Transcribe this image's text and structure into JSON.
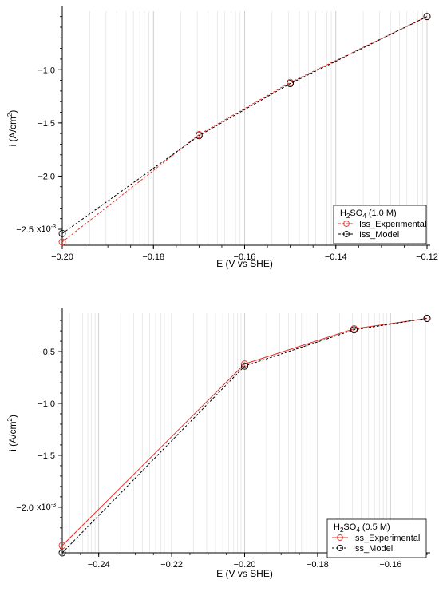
{
  "chart_data": [
    {
      "type": "line",
      "xlabel_main": "E (V vs SHE)",
      "ylabel_main": "i (A/cm",
      "ylabel_sup": "2",
      "ylabel_close": ")",
      "x_ticks": [
        -0.2,
        -0.18,
        -0.16,
        -0.14,
        -0.12
      ],
      "x_tick_labels": [
        "−0.20",
        "−0.18",
        "−0.16",
        "−0.14",
        "−0.12"
      ],
      "y_ticks": [
        -2.5,
        -2.0,
        -1.5,
        -1.0
      ],
      "y_tick_labels": [
        "−2.5",
        "−2.0",
        "−1.5",
        "−1.0"
      ],
      "y_multiplier": "x10",
      "y_multiplier_exp": "-3",
      "xlim": [
        -0.2,
        -0.12
      ],
      "ylim": [
        -2.65,
        -0.45
      ],
      "grid": "vertical minor",
      "legend_position": "bottom-right",
      "legend_title": "H",
      "legend_title_sub": "2",
      "legend_title_rest": "SO",
      "legend_title_sub2": "4",
      "legend_title_end": " (1.0 M)",
      "series": [
        {
          "name": "Iss_Experimental",
          "color": "#e8312b",
          "dash": "dashed",
          "x": [
            -0.2,
            -0.17,
            -0.15,
            -0.12
          ],
          "y": [
            -2.62,
            -1.61,
            -1.12,
            -0.5
          ]
        },
        {
          "name": "Iss_Model",
          "color": "#000000",
          "dash": "dashed",
          "x": [
            -0.2,
            -0.17,
            -0.15,
            -0.12
          ],
          "y": [
            -2.54,
            -1.62,
            -1.13,
            -0.5
          ]
        }
      ]
    },
    {
      "type": "line",
      "xlabel_main": "E (V vs SHE)",
      "ylabel_main": "i (A/cm",
      "ylabel_sup": "2",
      "ylabel_close": ")",
      "x_ticks": [
        -0.24,
        -0.22,
        -0.2,
        -0.18,
        -0.16
      ],
      "x_tick_labels": [
        "−0.24",
        "−0.22",
        "−0.20",
        "−0.18",
        "−0.16"
      ],
      "y_ticks": [
        -2.0,
        -1.5,
        -1.0,
        -0.5
      ],
      "y_tick_labels": [
        "−2.0",
        "−1.5",
        "−1.0",
        "−0.5"
      ],
      "y_multiplier": "x10",
      "y_multiplier_exp": "-3",
      "xlim": [
        -0.25,
        -0.15
      ],
      "ylim": [
        -2.44,
        -0.13
      ],
      "grid": "vertical minor",
      "legend_position": "bottom-right",
      "legend_title": "H",
      "legend_title_sub": "2",
      "legend_title_rest": "SO",
      "legend_title_sub2": "4",
      "legend_title_end": " (0.5 M)",
      "series": [
        {
          "name": "Iss_Experimental",
          "color": "#e8312b",
          "dash": "solid",
          "x": [
            -0.25,
            -0.2,
            -0.17,
            -0.15
          ],
          "y": [
            -2.37,
            -0.62,
            -0.28,
            -0.18
          ]
        },
        {
          "name": "Iss_Model",
          "color": "#000000",
          "dash": "dashed",
          "x": [
            -0.25,
            -0.2,
            -0.17,
            -0.15
          ],
          "y": [
            -2.44,
            -0.64,
            -0.29,
            -0.18
          ]
        }
      ]
    }
  ]
}
